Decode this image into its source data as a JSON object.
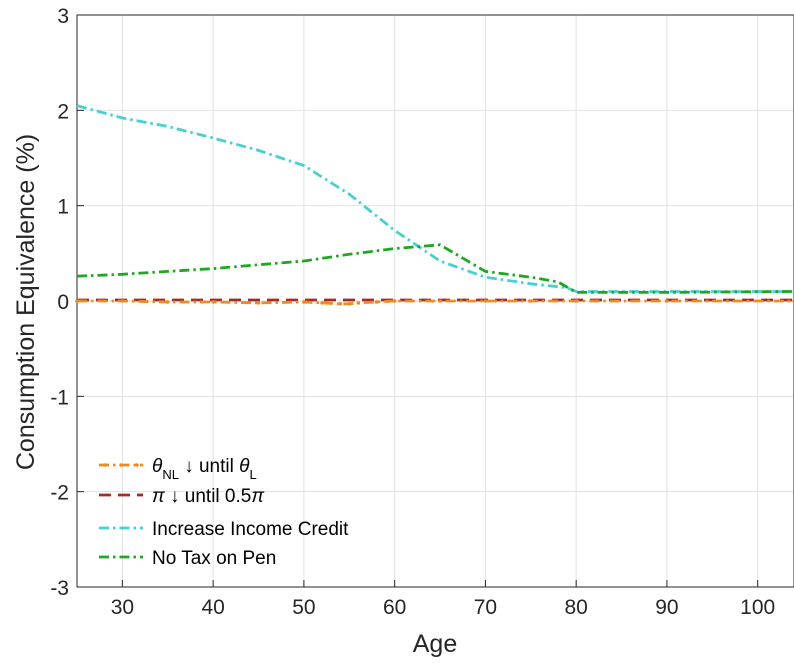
{
  "chart_data": {
    "type": "line",
    "xlabel": "Age",
    "ylabel": "Consumption Equivalence (%)",
    "xlim": [
      25,
      104
    ],
    "ylim": [
      -3,
      3
    ],
    "xticks": [
      "30",
      "40",
      "50",
      "60",
      "70",
      "80",
      "90",
      "100"
    ],
    "yticks": [
      "-3",
      "-2",
      "-1",
      "0",
      "1",
      "2",
      "3"
    ],
    "grid": true,
    "legend_position": "bottom-left",
    "series": [
      {
        "name": "θNL ↓ until θL",
        "legend_parts": {
          "a": "θ",
          "a_sub": "NL",
          "b": " ↓ until ",
          "c": "θ",
          "c_sub": "L"
        },
        "color": "#f08a1e",
        "style": "dash-dot-marker",
        "x": [
          25,
          30,
          35,
          40,
          45,
          50,
          52,
          54,
          55,
          56,
          58,
          60,
          65,
          70,
          75,
          80,
          90,
          104
        ],
        "y": [
          0.0,
          0.0,
          -0.01,
          -0.01,
          -0.02,
          -0.01,
          -0.02,
          -0.03,
          -0.03,
          -0.02,
          -0.01,
          0.0,
          0.0,
          0.0,
          0.0,
          0.0,
          0.0,
          0.0
        ]
      },
      {
        "name": "π ↓ until 0.5π",
        "legend_parts": {
          "a": "π",
          "b": " ↓ until 0.5",
          "c": "π"
        },
        "color": "#a32a26",
        "style": "dashed",
        "x": [
          25,
          40,
          55,
          65,
          80,
          104
        ],
        "y": [
          0.01,
          0.01,
          0.01,
          0.01,
          0.01,
          0.01
        ]
      },
      {
        "name": "Increase Income Credit",
        "color": "#46d1d1",
        "style": "dash-dot",
        "x": [
          25,
          30,
          35,
          40,
          45,
          50,
          55,
          60,
          65,
          70,
          75,
          79,
          80,
          90,
          104
        ],
        "y": [
          2.05,
          1.92,
          1.83,
          1.71,
          1.58,
          1.42,
          1.12,
          0.74,
          0.42,
          0.25,
          0.18,
          0.14,
          0.1,
          0.1,
          0.1
        ]
      },
      {
        "name": "No Tax on Pen",
        "color": "#1fa81f",
        "style": "dash-dot",
        "x": [
          25,
          30,
          35,
          40,
          45,
          50,
          55,
          60,
          65,
          70,
          75,
          78,
          80,
          90,
          104
        ],
        "y": [
          0.26,
          0.28,
          0.31,
          0.34,
          0.38,
          0.42,
          0.49,
          0.55,
          0.59,
          0.31,
          0.25,
          0.2,
          0.09,
          0.09,
          0.1
        ]
      }
    ]
  }
}
